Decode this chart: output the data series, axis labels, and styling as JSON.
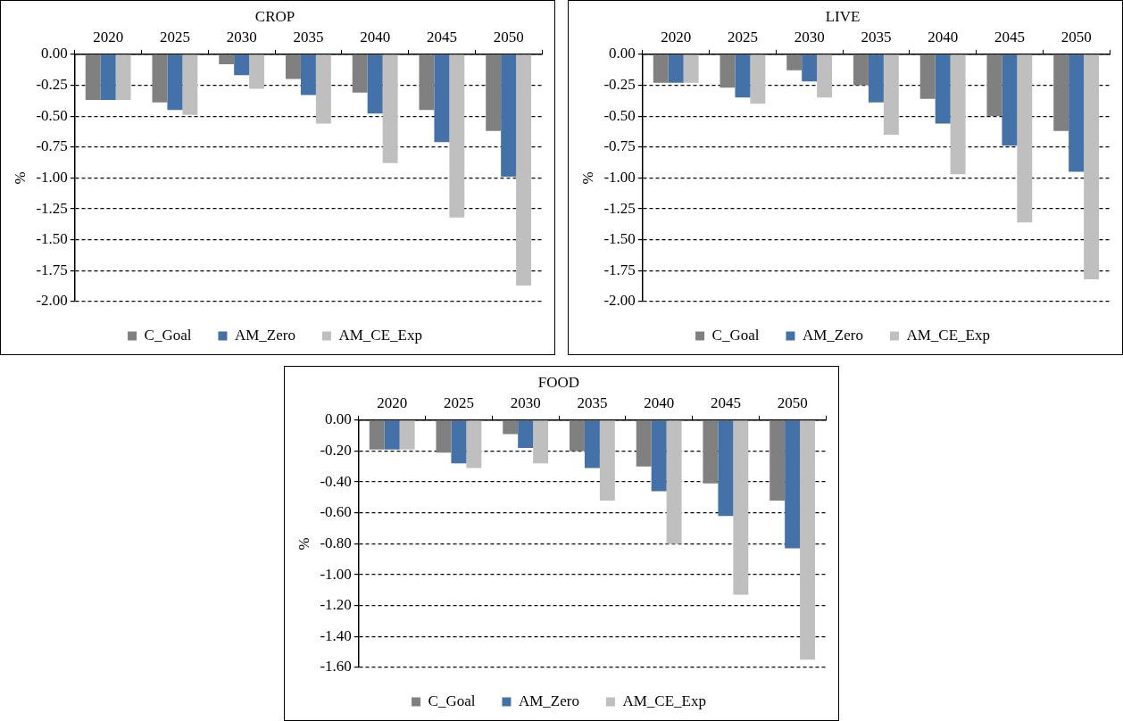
{
  "chart_data": [
    {
      "type": "bar",
      "title": "CROP",
      "ylabel": "%",
      "categories": [
        "2020",
        "2025",
        "2030",
        "2035",
        "2040",
        "2045",
        "2050"
      ],
      "series": [
        {
          "name": "C_Goal",
          "color": "#808080",
          "values": [
            -0.37,
            -0.39,
            -0.08,
            -0.2,
            -0.31,
            -0.45,
            -0.62
          ]
        },
        {
          "name": "AM_Zero",
          "color": "#4472a8",
          "values": [
            -0.37,
            -0.45,
            -0.17,
            -0.33,
            -0.48,
            -0.71,
            -0.99
          ]
        },
        {
          "name": "AM_CE_Exp",
          "color": "#bfbfbf",
          "values": [
            -0.37,
            -0.49,
            -0.28,
            -0.56,
            -0.88,
            -1.32,
            -1.87
          ]
        }
      ],
      "ylim": [
        -2,
        0
      ],
      "yticks": [
        {
          "value": -2,
          "label": "-2.00"
        },
        {
          "value": -1.75,
          "label": "-1.75"
        },
        {
          "value": -1.5,
          "label": "-1.50"
        },
        {
          "value": -1.25,
          "label": "-1.25"
        },
        {
          "value": -1,
          "label": "-1.00"
        },
        {
          "value": -0.75,
          "label": "-0.75"
        },
        {
          "value": -0.5,
          "label": "-0.50"
        },
        {
          "value": -0.25,
          "label": "-0.25"
        },
        {
          "value": 0,
          "label": "0.00"
        }
      ],
      "grid": "y",
      "legend": "bottom"
    },
    {
      "type": "bar",
      "title": "LIVE",
      "ylabel": "%",
      "categories": [
        "2020",
        "2025",
        "2030",
        "2035",
        "2040",
        "2045",
        "2050"
      ],
      "series": [
        {
          "name": "C_Goal",
          "color": "#808080",
          "values": [
            -0.23,
            -0.27,
            -0.13,
            -0.25,
            -0.36,
            -0.5,
            -0.62
          ]
        },
        {
          "name": "AM_Zero",
          "color": "#4472a8",
          "values": [
            -0.23,
            -0.35,
            -0.22,
            -0.39,
            -0.56,
            -0.74,
            -0.95
          ]
        },
        {
          "name": "AM_CE_Exp",
          "color": "#bfbfbf",
          "values": [
            -0.23,
            -0.4,
            -0.35,
            -0.65,
            -0.97,
            -1.36,
            -1.82
          ]
        }
      ],
      "ylim": [
        -2,
        0
      ],
      "yticks": [
        {
          "value": -2,
          "label": "-2.00"
        },
        {
          "value": -1.75,
          "label": "-1.75"
        },
        {
          "value": -1.5,
          "label": "-1.50"
        },
        {
          "value": -1.25,
          "label": "-1.25"
        },
        {
          "value": -1,
          "label": "-1.00"
        },
        {
          "value": -0.75,
          "label": "-0.75"
        },
        {
          "value": -0.5,
          "label": "-0.50"
        },
        {
          "value": -0.25,
          "label": "-0.25"
        },
        {
          "value": 0,
          "label": "0.00"
        }
      ],
      "grid": "y",
      "legend": "bottom"
    },
    {
      "type": "bar",
      "title": "FOOD",
      "ylabel": "%",
      "categories": [
        "2020",
        "2025",
        "2030",
        "2035",
        "2040",
        "2045",
        "2050"
      ],
      "series": [
        {
          "name": "C_Goal",
          "color": "#808080",
          "values": [
            -0.19,
            -0.21,
            -0.09,
            -0.2,
            -0.3,
            -0.41,
            -0.52
          ]
        },
        {
          "name": "AM_Zero",
          "color": "#4472a8",
          "values": [
            -0.19,
            -0.28,
            -0.18,
            -0.31,
            -0.46,
            -0.62,
            -0.83
          ]
        },
        {
          "name": "AM_CE_Exp",
          "color": "#bfbfbf",
          "values": [
            -0.19,
            -0.31,
            -0.28,
            -0.52,
            -0.8,
            -1.13,
            -1.55
          ]
        }
      ],
      "ylim": [
        -1.6,
        0
      ],
      "yticks": [
        {
          "value": -1.6,
          "label": "-1.60"
        },
        {
          "value": -1.4,
          "label": "-1.40"
        },
        {
          "value": -1.2,
          "label": "-1.20"
        },
        {
          "value": -1,
          "label": "-1.00"
        },
        {
          "value": -0.8,
          "label": "-0.80"
        },
        {
          "value": -0.6,
          "label": "-0.60"
        },
        {
          "value": -0.4,
          "label": "-0.40"
        },
        {
          "value": -0.2,
          "label": "-0.20"
        },
        {
          "value": 0,
          "label": "0.00"
        }
      ],
      "grid": "y",
      "legend": "bottom"
    }
  ]
}
